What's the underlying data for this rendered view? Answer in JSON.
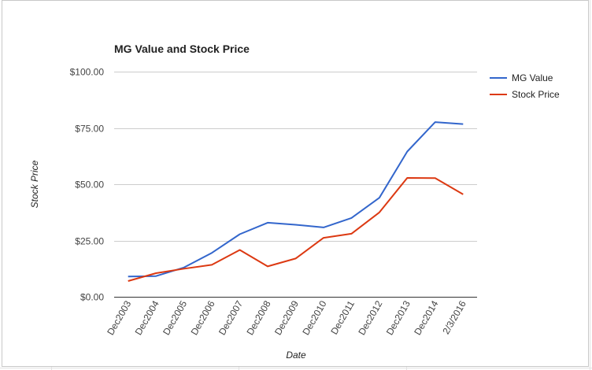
{
  "chart_data": {
    "type": "line",
    "title": "MG Value and Stock Price",
    "xlabel": "Date",
    "ylabel": "Stock Price",
    "categories": [
      "Dec2003",
      "Dec2004",
      "Dec2005",
      "Dec2006",
      "Dec2007",
      "Dec2008",
      "Dec2009",
      "Dec2010",
      "Dec2011",
      "Dec2012",
      "Dec2013",
      "Dec2014",
      "2/3/2016"
    ],
    "y_ticks": [
      "$0.00",
      "$25.00",
      "$50.00",
      "$75.00",
      "$100.00"
    ],
    "ylim": [
      0,
      100
    ],
    "grid": true,
    "legend_position": "right",
    "series": [
      {
        "name": "MG Value",
        "color": "#3366cc",
        "values": [
          9.0,
          9.2,
          13.0,
          19.5,
          27.8,
          32.9,
          32.0,
          30.8,
          35.0,
          44.0,
          64.5,
          77.6,
          76.7
        ]
      },
      {
        "name": "Stock Price",
        "color": "#dc3912",
        "values": [
          7.0,
          10.5,
          12.5,
          14.2,
          20.8,
          13.5,
          17.0,
          26.2,
          28.0,
          37.5,
          52.8,
          52.7,
          45.5
        ]
      }
    ]
  }
}
